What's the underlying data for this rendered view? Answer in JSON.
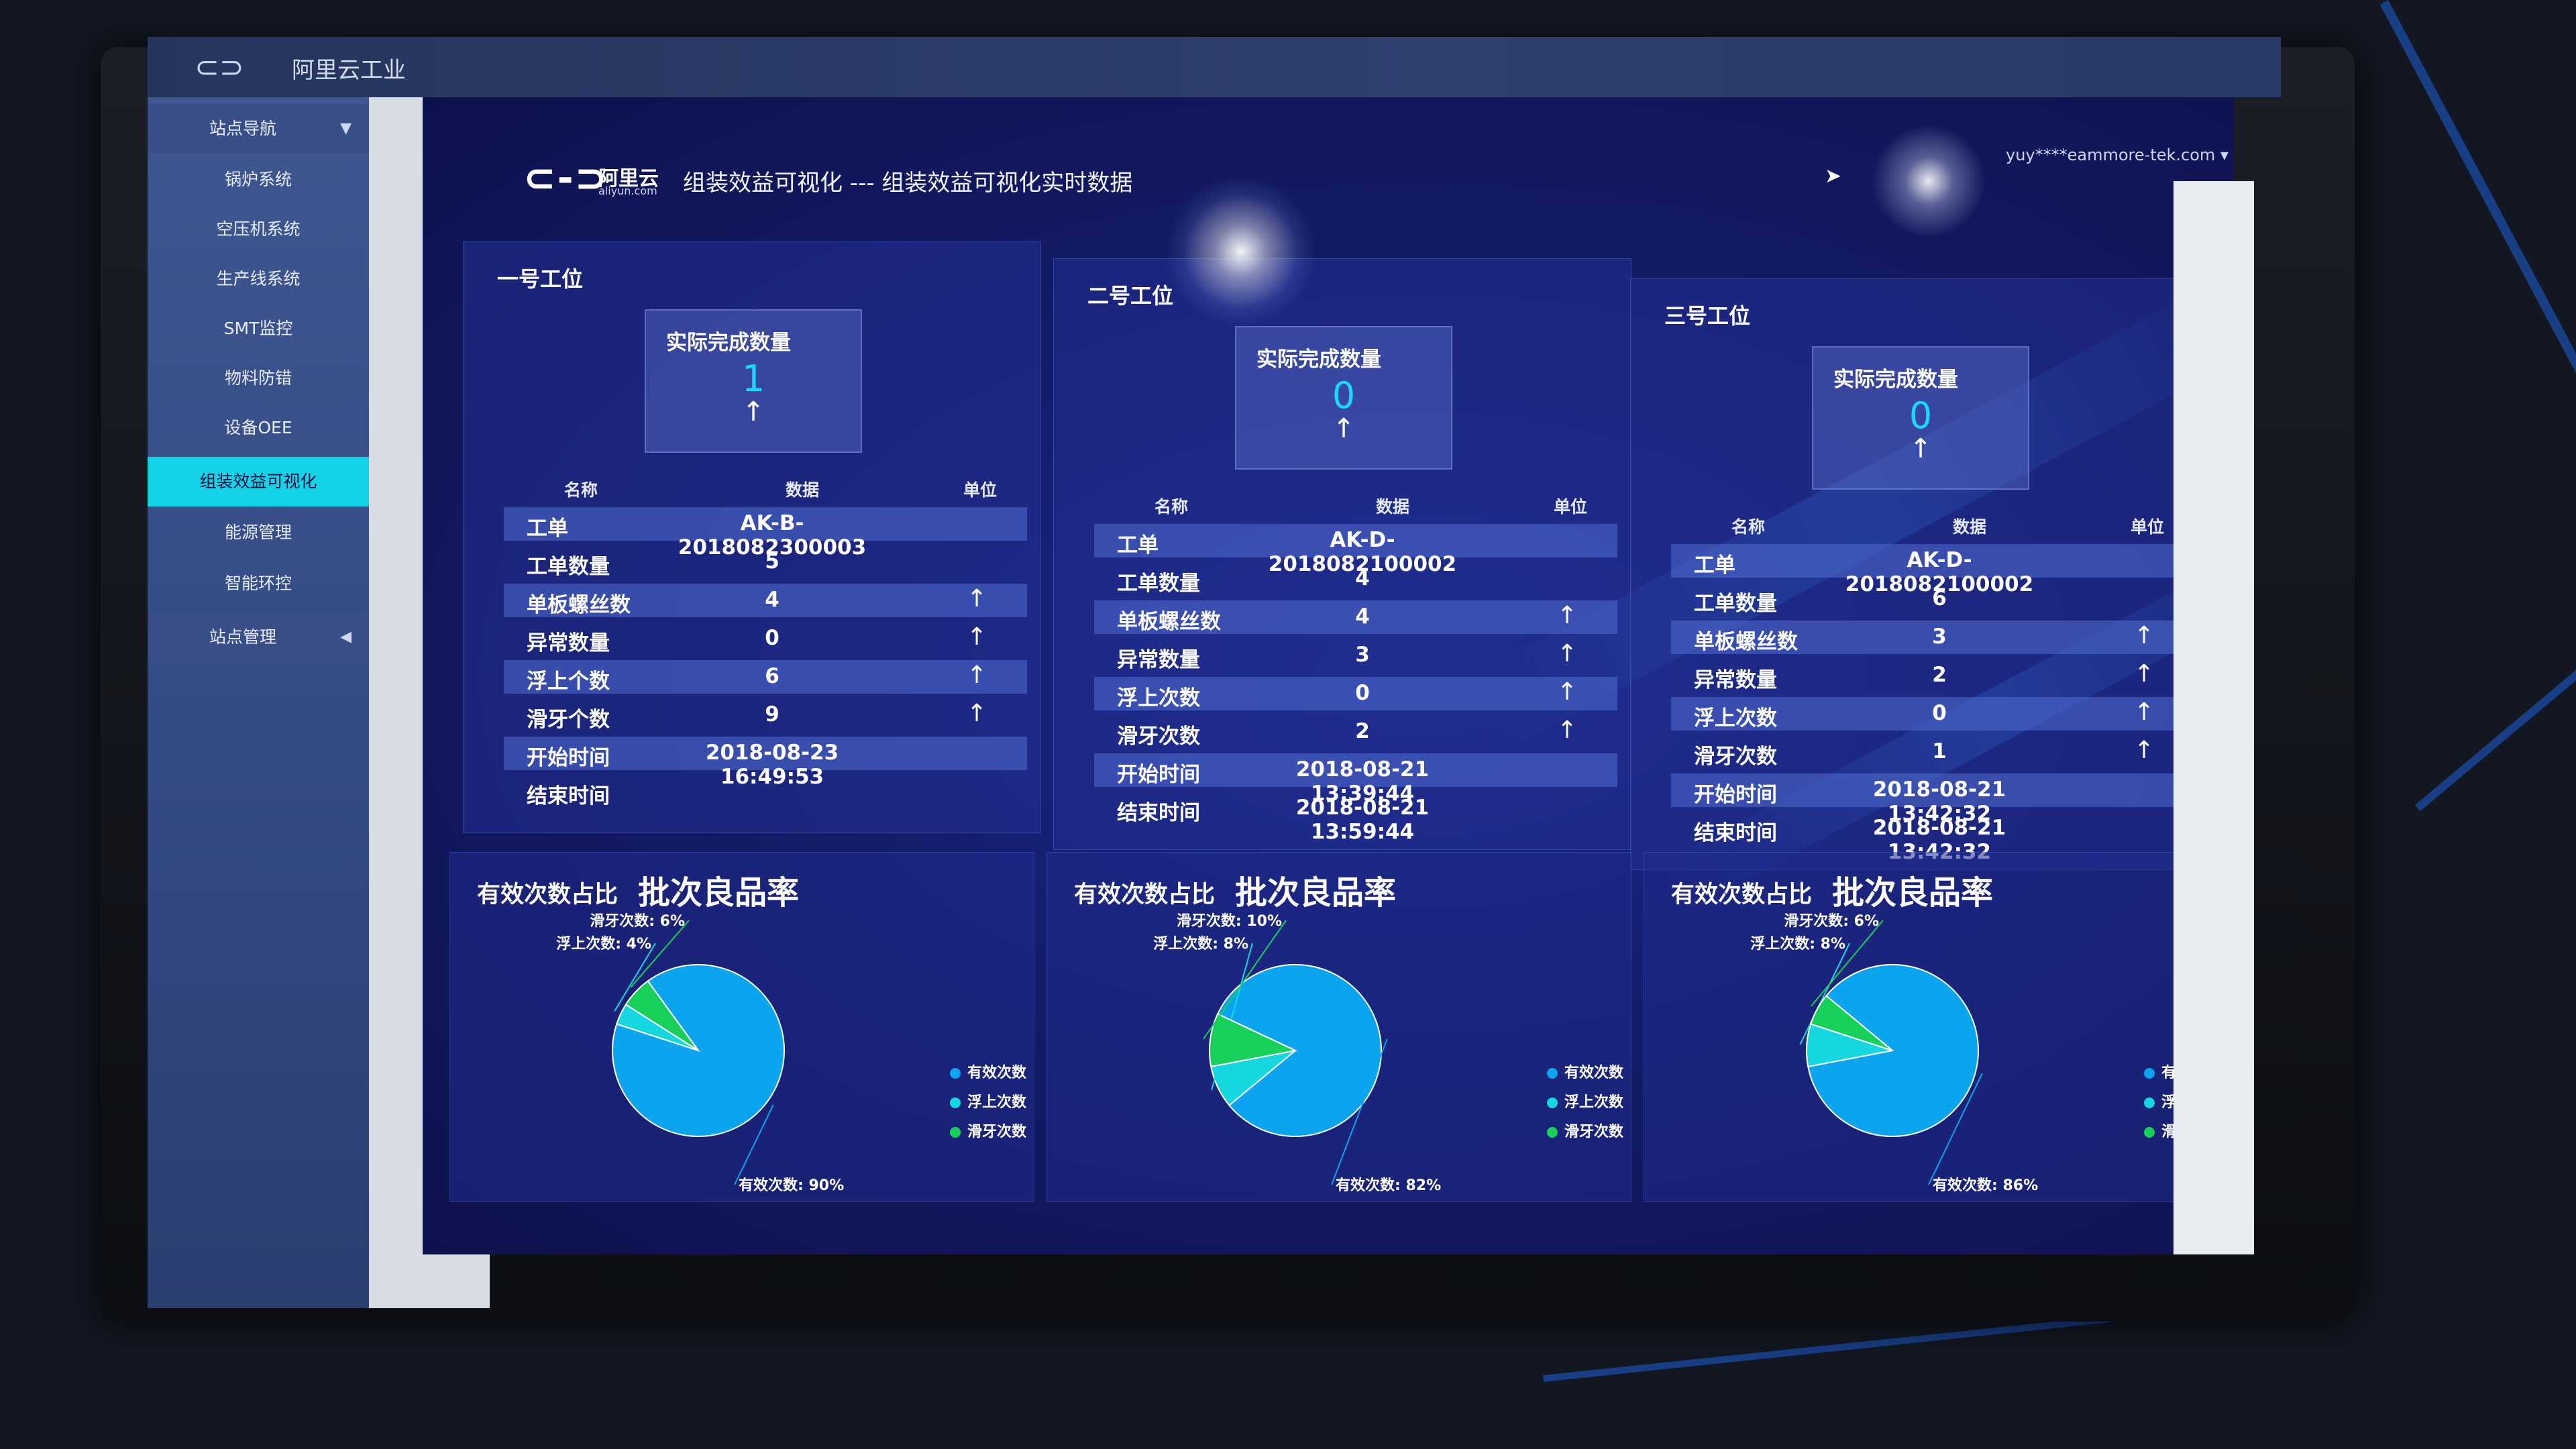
{
  "app": {
    "name": "阿里云工业",
    "logo_glyph": "⊂⊃"
  },
  "sidebar": {
    "group_label": "站点导航",
    "items": [
      {
        "label": "锅炉系统"
      },
      {
        "label": "空压机系统"
      },
      {
        "label": "生产线系统"
      },
      {
        "label": "SMT监控"
      },
      {
        "label": "物料防错"
      },
      {
        "label": "设备OEE"
      },
      {
        "label": "组装效益可视化",
        "active": true
      },
      {
        "label": "能源管理"
      },
      {
        "label": "智能环控"
      }
    ],
    "footer_label": "站点管理"
  },
  "header": {
    "logo_text": "⊂-⊃",
    "logo_cn": "阿里云",
    "logo_en": "aliyun.com",
    "title": "组装效益可视化 --- 组装效益可视化实时数据",
    "user": "yuy****eammore-tek.com"
  },
  "colors": {
    "accent": "#14d3e6",
    "effective": "#0ba4ee",
    "float": "#14d7e0",
    "slip": "#17d05a"
  },
  "columns": {
    "name": "名称",
    "data": "数据",
    "unit": "单位"
  },
  "kpi_label": "实际完成数量",
  "stations": [
    {
      "title": "一号工位",
      "completed": "1",
      "rows": [
        {
          "name": "工单",
          "value": "AK-B-2018082300003",
          "unit": ""
        },
        {
          "name": "工单数量",
          "value": "5",
          "unit": ""
        },
        {
          "name": "单板螺丝数",
          "value": "4",
          "unit": "↑"
        },
        {
          "name": "异常数量",
          "value": "0",
          "unit": "↑"
        },
        {
          "name": "浮上个数",
          "value": "6",
          "unit": "↑"
        },
        {
          "name": "滑牙个数",
          "value": "9",
          "unit": "↑"
        },
        {
          "name": "开始时间",
          "value": "2018-08-23 16:49:53",
          "unit": ""
        },
        {
          "name": "结束时间",
          "value": "",
          "unit": ""
        }
      ]
    },
    {
      "title": "二号工位",
      "completed": "0",
      "rows": [
        {
          "name": "工单",
          "value": "AK-D-2018082100002",
          "unit": ""
        },
        {
          "name": "工单数量",
          "value": "4",
          "unit": ""
        },
        {
          "name": "单板螺丝数",
          "value": "4",
          "unit": "↑"
        },
        {
          "name": "异常数量",
          "value": "3",
          "unit": "↑"
        },
        {
          "name": "浮上次数",
          "value": "0",
          "unit": "↑"
        },
        {
          "name": "滑牙次数",
          "value": "2",
          "unit": "↑"
        },
        {
          "name": "开始时间",
          "value": "2018-08-21 13:39:44",
          "unit": ""
        },
        {
          "name": "结束时间",
          "value": "2018-08-21 13:59:44",
          "unit": ""
        }
      ]
    },
    {
      "title": "三号工位",
      "completed": "0",
      "rows": [
        {
          "name": "工单",
          "value": "AK-D-2018082100002",
          "unit": ""
        },
        {
          "name": "工单数量",
          "value": "6",
          "unit": ""
        },
        {
          "name": "单板螺丝数",
          "value": "3",
          "unit": "↑"
        },
        {
          "name": "异常数量",
          "value": "2",
          "unit": "↑"
        },
        {
          "name": "浮上次数",
          "value": "0",
          "unit": "↑"
        },
        {
          "name": "滑牙次数",
          "value": "1",
          "unit": "↑"
        },
        {
          "name": "开始时间",
          "value": "2018-08-21 13:42:32",
          "unit": ""
        },
        {
          "name": "结束时间",
          "value": "2018-08-21 13:42:32",
          "unit": ""
        }
      ]
    }
  ],
  "chart_data": [
    {
      "type": "pie",
      "subtitle": "有效次数占比",
      "title": "批次良品率",
      "legend": [
        "有效次数",
        "浮上次数",
        "滑牙次数"
      ],
      "legend_position": "right",
      "slices": [
        {
          "name": "有效次数",
          "value": 90,
          "label": "有效次数: 90%"
        },
        {
          "name": "浮上次数",
          "value": 4,
          "label": "浮上次数: 4%"
        },
        {
          "name": "滑牙次数",
          "value": 6,
          "label": "滑牙次数: 6%"
        }
      ]
    },
    {
      "type": "pie",
      "subtitle": "有效次数占比",
      "title": "批次良品率",
      "legend": [
        "有效次数",
        "浮上次数",
        "滑牙次数"
      ],
      "legend_position": "right",
      "slices": [
        {
          "name": "有效次数",
          "value": 82,
          "label": "有效次数: 82%"
        },
        {
          "name": "浮上次数",
          "value": 8,
          "label": "浮上次数: 8%"
        },
        {
          "name": "滑牙次数",
          "value": 10,
          "label": "滑牙次数: 10%"
        }
      ]
    },
    {
      "type": "pie",
      "subtitle": "有效次数占比",
      "title": "批次良品率",
      "legend": [
        "有效次数",
        "浮上次数",
        "滑牙次数"
      ],
      "legend_position": "right",
      "slices": [
        {
          "name": "有效次数",
          "value": 86,
          "label": "有效次数: 86%"
        },
        {
          "name": "浮上次数",
          "value": 8,
          "label": "浮上次数: 8%"
        },
        {
          "name": "滑牙次数",
          "value": 6,
          "label": "滑牙次数: 6%"
        }
      ]
    }
  ]
}
